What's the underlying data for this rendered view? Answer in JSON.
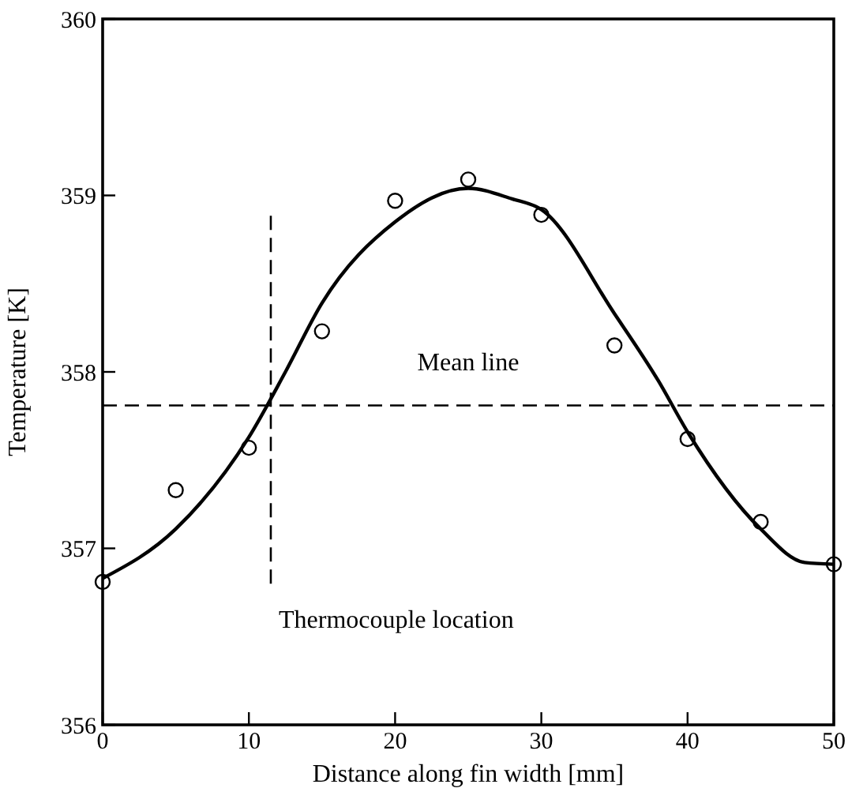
{
  "chart_data": {
    "type": "scatter",
    "xlabel": "Distance along fin width [mm]",
    "ylabel": "Temperature [K]",
    "xlim": [
      0,
      50
    ],
    "xticks": [
      0,
      10,
      20,
      30,
      40,
      50
    ],
    "ylim": [
      356,
      360
    ],
    "yticks": [
      356,
      357,
      358,
      359,
      360
    ],
    "grid": false,
    "series": [
      {
        "marker": "circle",
        "color": "#000000",
        "x": [
          0,
          5,
          10,
          15,
          20,
          25,
          30,
          35,
          40,
          45,
          50
        ],
        "values": [
          356.81,
          357.33,
          357.57,
          358.23,
          358.97,
          359.09,
          358.89,
          358.15,
          357.62,
          357.15,
          356.91
        ]
      },
      {
        "type": "line",
        "marker": "none",
        "line_style": "solid",
        "color": "#000000",
        "x": [
          0,
          5,
          10,
          12.5,
          15,
          20,
          25,
          28,
          30,
          35,
          38,
          40,
          45,
          48,
          50
        ],
        "values": [
          356.83,
          357.11,
          357.63,
          358.0,
          358.39,
          358.85,
          359.04,
          358.98,
          358.92,
          358.33,
          357.95,
          357.66,
          357.11,
          356.92,
          356.91
        ]
      }
    ],
    "ref_lines": [
      {
        "axis": "y",
        "value": 357.81,
        "label": "Mean line",
        "line_style": "dashed"
      },
      {
        "axis": "x",
        "value": 11.5,
        "label": "Thermocouple location",
        "line_style": "dashed"
      }
    ]
  }
}
